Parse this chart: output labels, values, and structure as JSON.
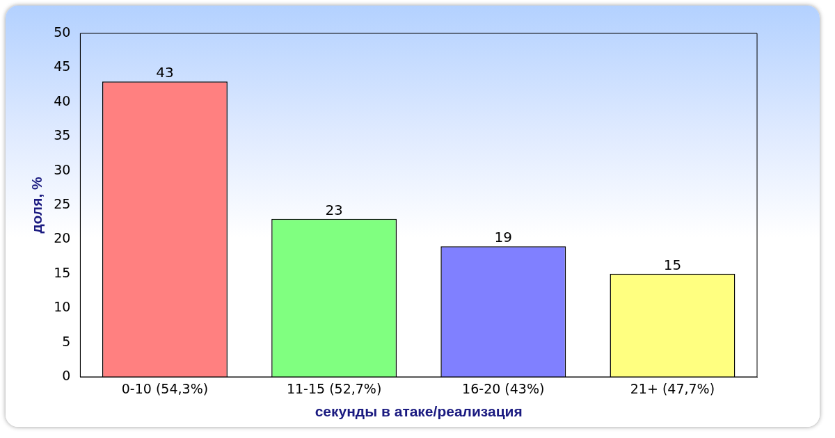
{
  "chart_data": {
    "type": "bar",
    "xlabel": "секунды в атаке/реализация",
    "ylabel": "доля, %",
    "categories": [
      "0-10 (54,3%)",
      "11-15 (52,7%)",
      "16-20 (43%)",
      "21+ (47,7%)"
    ],
    "values": [
      43,
      23,
      19,
      15
    ],
    "colors": [
      "#ff8080",
      "#80ff80",
      "#8080ff",
      "#ffff80"
    ],
    "ylim": [
      0,
      50
    ],
    "yticks": [
      0,
      5,
      10,
      15,
      20,
      25,
      30,
      35,
      40,
      45,
      50
    ],
    "grid": false,
    "legend": false,
    "data_labels": true
  }
}
